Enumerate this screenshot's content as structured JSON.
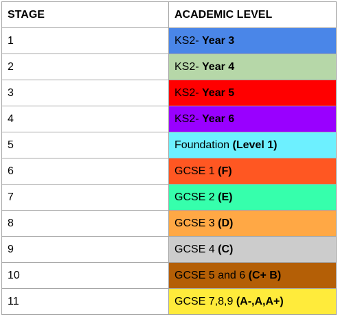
{
  "headers": {
    "stage": "STAGE",
    "level": "ACADEMIC LEVEL"
  },
  "rows": [
    {
      "stage": "1",
      "level_plain": "KS2- ",
      "level_bold": "Year 3",
      "color": "#4a86e8"
    },
    {
      "stage": "2",
      "level_plain": "KS2- ",
      "level_bold": "Year 4",
      "color": "#b6d7a8"
    },
    {
      "stage": "3",
      "level_plain": "KS2- ",
      "level_bold": "Year 5",
      "color": "#ff0000"
    },
    {
      "stage": "4",
      "level_plain": "KS2- ",
      "level_bold": "Year 6",
      "color": "#9900ff"
    },
    {
      "stage": "5",
      "level_plain": "Foundation ",
      "level_bold": "(Level 1)",
      "color": "#6df0ff"
    },
    {
      "stage": "6",
      "level_plain": "GCSE 1 ",
      "level_bold": "(F)",
      "color": "#ff5722"
    },
    {
      "stage": "7",
      "level_plain": "GCSE 2 ",
      "level_bold": "(E)",
      "color": "#36ffac"
    },
    {
      "stage": "8",
      "level_plain": "GCSE 3 ",
      "level_bold": "(D)",
      "color": "#ffa845"
    },
    {
      "stage": "9",
      "level_plain": "GCSE 4 ",
      "level_bold": "(C)",
      "color": "#cccccc"
    },
    {
      "stage": "10",
      "level_plain": "GCSE 5 and 6 ",
      "level_bold": "(C+ B)",
      "color": "#b45f06"
    },
    {
      "stage": "11",
      "level_plain": "GCSE 7,8,9 ",
      "level_bold": "(A-,A,A+)",
      "color": "#ffeb3b"
    }
  ]
}
